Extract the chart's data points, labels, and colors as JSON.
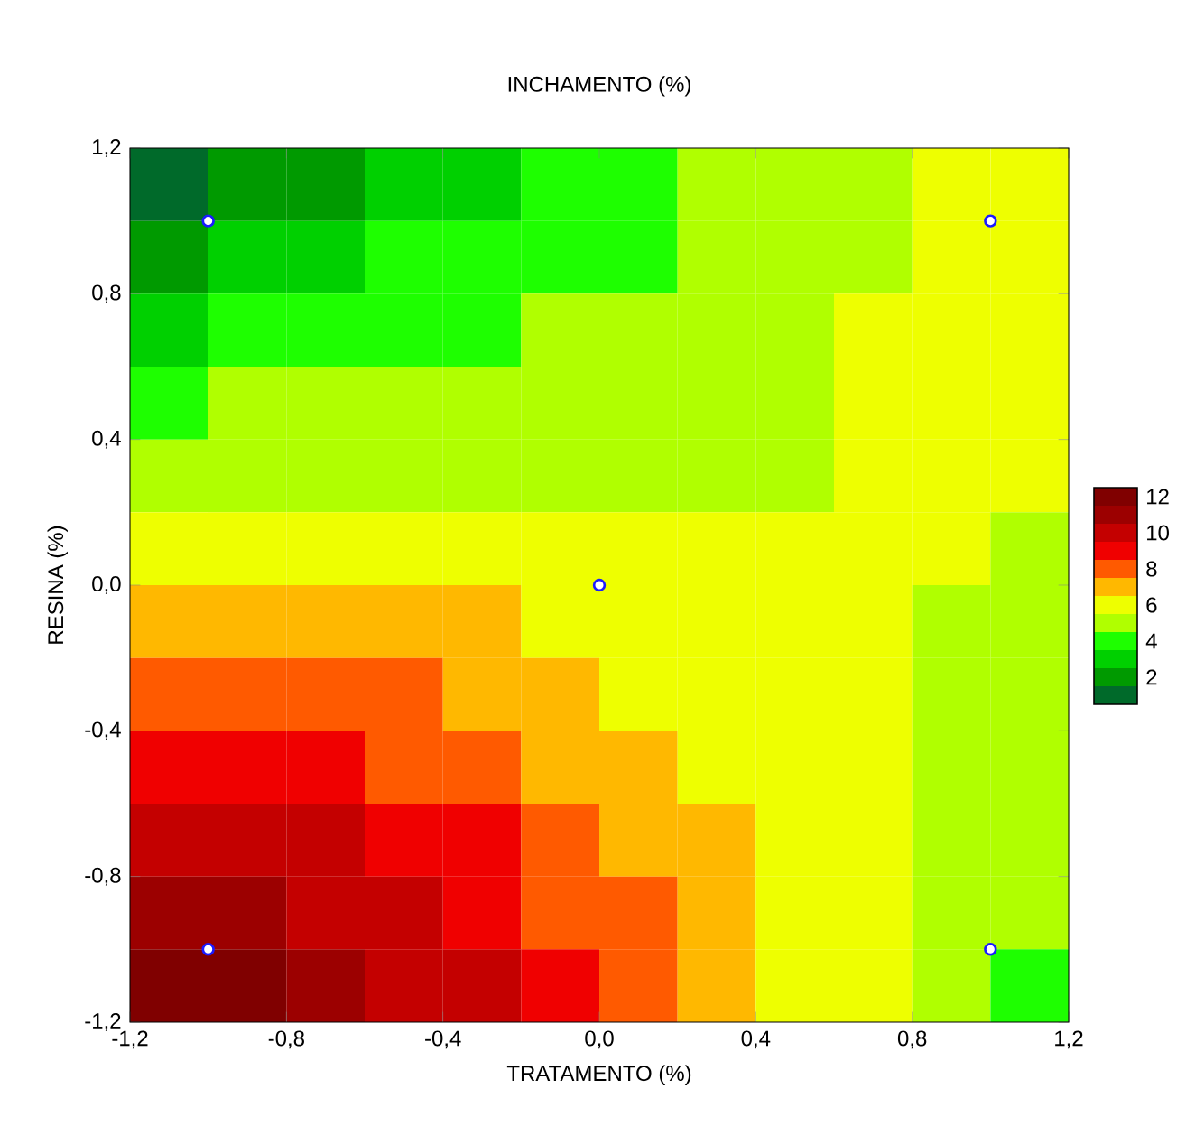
{
  "chart_data": {
    "type": "heatmap",
    "title": "INCHAMENTO (%)",
    "xlabel": "TRATAMENTO (%)",
    "ylabel": "RESINA (%)",
    "x": [
      -1.1,
      -0.9,
      -0.7,
      -0.5,
      -0.3,
      -0.1,
      0.1,
      0.3,
      0.5,
      0.7,
      0.9,
      1.1
    ],
    "y": [
      1.1,
      0.9,
      0.7,
      0.5,
      0.3,
      0.1,
      -0.1,
      -0.3,
      -0.5,
      -0.7,
      -0.9,
      -1.1
    ],
    "xlim": [
      -1.2,
      1.2
    ],
    "ylim": [
      -1.2,
      1.2
    ],
    "xticks": [
      {
        "value": -1.2,
        "label": "-1,2"
      },
      {
        "value": -0.8,
        "label": "-0,8"
      },
      {
        "value": -0.4,
        "label": "-0,4"
      },
      {
        "value": 0,
        "label": "0,0"
      },
      {
        "value": 0.4,
        "label": "0,4"
      },
      {
        "value": 0.8,
        "label": "0,8"
      },
      {
        "value": 1.2,
        "label": "1,2"
      }
    ],
    "yticks": [
      {
        "value": -1.2,
        "label": "-1,2"
      },
      {
        "value": -0.8,
        "label": "-0,8"
      },
      {
        "value": -0.4,
        "label": "-0,4"
      },
      {
        "value": 0,
        "label": "0,0"
      },
      {
        "value": 0.4,
        "label": "0,4"
      },
      {
        "value": 0.8,
        "label": "0,8"
      },
      {
        "value": 1.2,
        "label": "1,2"
      }
    ],
    "cells": [
      [
        1,
        2,
        2,
        3,
        3,
        4,
        4,
        5,
        5,
        5,
        6,
        6
      ],
      [
        2,
        3,
        3,
        4,
        4,
        4,
        4,
        5,
        5,
        5,
        6,
        6
      ],
      [
        3,
        4,
        4,
        4,
        4,
        5,
        5,
        5,
        5,
        6,
        6,
        6
      ],
      [
        4,
        5,
        5,
        5,
        5,
        5,
        5,
        5,
        5,
        6,
        6,
        6
      ],
      [
        5,
        5,
        5,
        5,
        5,
        5,
        5,
        5,
        5,
        6,
        6,
        6
      ],
      [
        6,
        6,
        6,
        6,
        6,
        6,
        6,
        6,
        6,
        6,
        6,
        5
      ],
      [
        7,
        7,
        7,
        7,
        7,
        6,
        6,
        6,
        6,
        6,
        5,
        5
      ],
      [
        8,
        8,
        8,
        8,
        7,
        7,
        6,
        6,
        6,
        6,
        5,
        5
      ],
      [
        9,
        9,
        9,
        8,
        8,
        7,
        7,
        6,
        6,
        6,
        5,
        5
      ],
      [
        10,
        10,
        10,
        9,
        9,
        8,
        7,
        7,
        6,
        6,
        5,
        5
      ],
      [
        11,
        11,
        10,
        10,
        9,
        8,
        8,
        7,
        6,
        6,
        5,
        5
      ],
      [
        12,
        12,
        11,
        10,
        10,
        9,
        8,
        7,
        6,
        6,
        5,
        4
      ]
    ],
    "clim": [
      1,
      12
    ],
    "cticks": [
      12,
      10,
      8,
      6,
      4,
      2
    ],
    "series": [
      {
        "type": "scatter",
        "marker": "circle",
        "color": "#1a1aff",
        "x": [
          -1,
          1,
          0,
          -1,
          1
        ],
        "values": [
          1,
          1,
          0,
          -1,
          -1
        ]
      }
    ]
  }
}
